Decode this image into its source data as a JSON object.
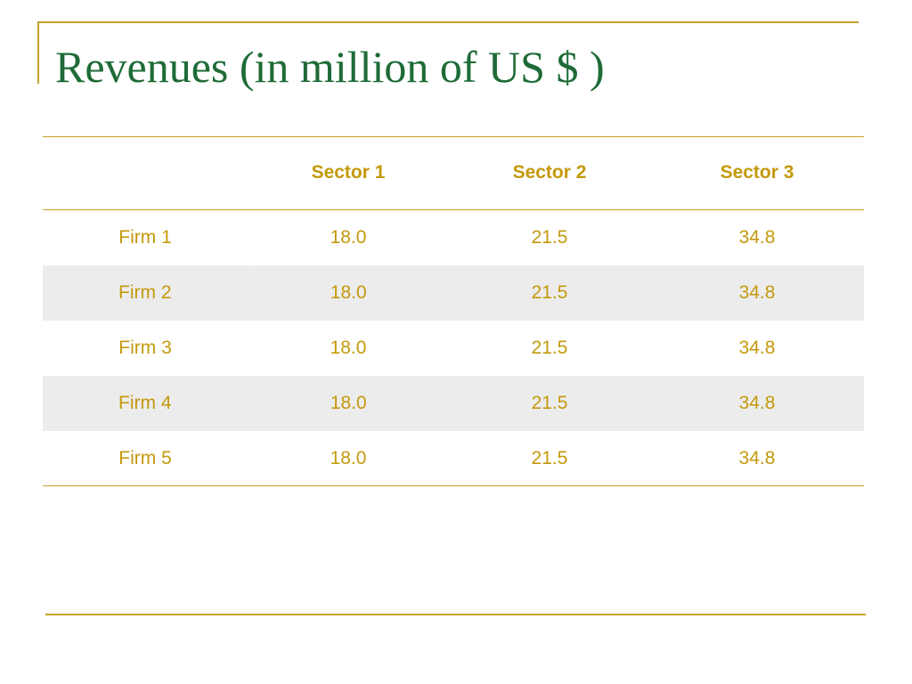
{
  "slide": {
    "title": "Revenues (in million of US $ )"
  },
  "table": {
    "headers": [
      "",
      "Sector 1",
      "Sector 2",
      "Sector 3"
    ],
    "rows": [
      {
        "label": "Firm 1",
        "values": [
          "18.0",
          "21.5",
          "34.8"
        ]
      },
      {
        "label": "Firm 2",
        "values": [
          "18.0",
          "21.5",
          "34.8"
        ]
      },
      {
        "label": "Firm 3",
        "values": [
          "18.0",
          "21.5",
          "34.8"
        ]
      },
      {
        "label": "Firm 4",
        "values": [
          "18.0",
          "21.5",
          "34.8"
        ]
      },
      {
        "label": "Firm 5",
        "values": [
          "18.0",
          "21.5",
          "34.8"
        ]
      }
    ]
  },
  "colors": {
    "title": "#1e6b37",
    "accent": "#c9a227",
    "header_text": "#c4990c",
    "cell_text": "#c4990c",
    "rule": "#c9a227",
    "stripe": "#ececec"
  }
}
